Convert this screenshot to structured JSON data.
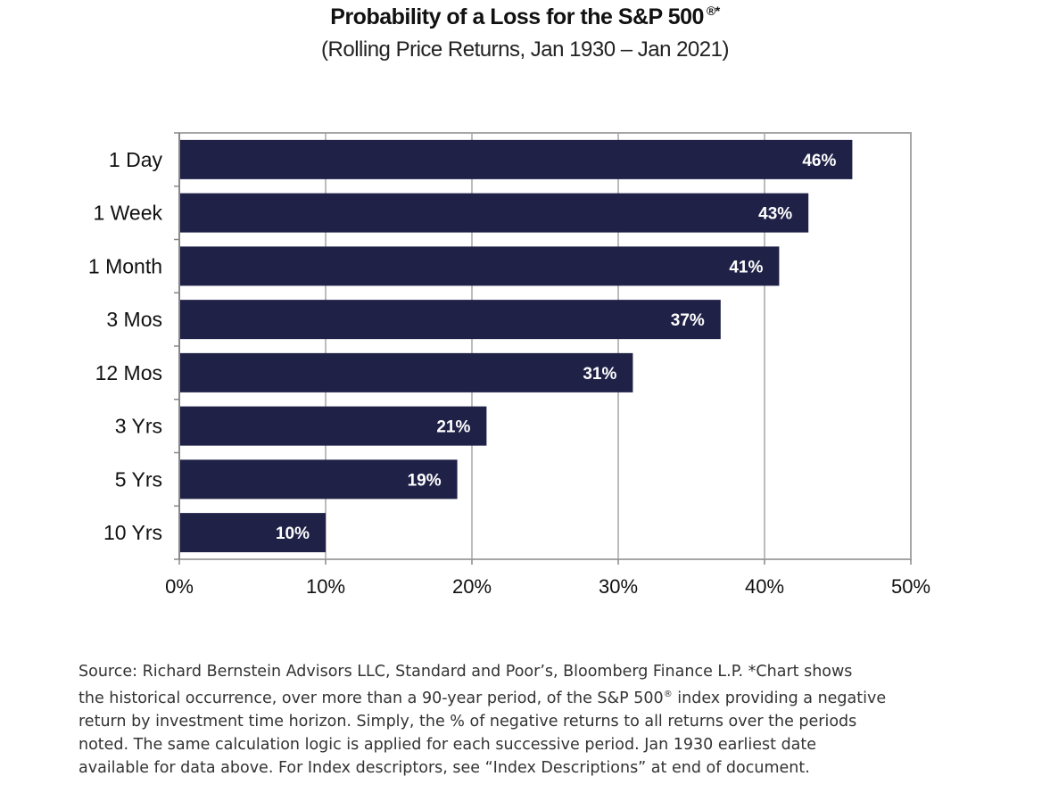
{
  "title": "Probability of a Loss for the S&P 500",
  "title_mark": "®*",
  "subtitle": "(Rolling Price Returns, Jan 1930 – Jan 2021)",
  "chart_data": {
    "type": "bar",
    "orientation": "horizontal",
    "categories": [
      "1 Day",
      "1 Week",
      "1 Month",
      "3 Mos",
      "12 Mos",
      "3 Yrs",
      "5 Yrs",
      "10 Yrs"
    ],
    "values": [
      46,
      43,
      41,
      37,
      31,
      21,
      19,
      10
    ],
    "data_labels": [
      "46%",
      "43%",
      "41%",
      "37%",
      "31%",
      "21%",
      "19%",
      "10%"
    ],
    "x_ticks": [
      0,
      10,
      20,
      30,
      40,
      50
    ],
    "x_tick_labels": [
      "0%",
      "10%",
      "20%",
      "30%",
      "40%",
      "50%"
    ],
    "xlim": [
      0,
      50
    ],
    "grid": "vertical",
    "legend": "none",
    "bar_color": "#1f2147",
    "label_color": "#ffffff",
    "grid_color": "#a6a6a6"
  },
  "footnote": {
    "l1": "Source: Richard Bernstein Advisors LLC, Standard and Poor’s, Bloomberg Finance L.P. *Chart shows",
    "l2a": "the historical occurrence, over more than a 90-year period, of the S&P 500",
    "l2mark": "®",
    "l2b": " index providing a negative",
    "l3": "return by investment time horizon.   Simply, the % of negative returns to all returns over the periods",
    "l4": "noted.  The same calculation logic is applied for each successive period. Jan 1930 earliest date",
    "l5": "available for data above. For Index descriptors, see “Index Descriptions” at end of document."
  }
}
